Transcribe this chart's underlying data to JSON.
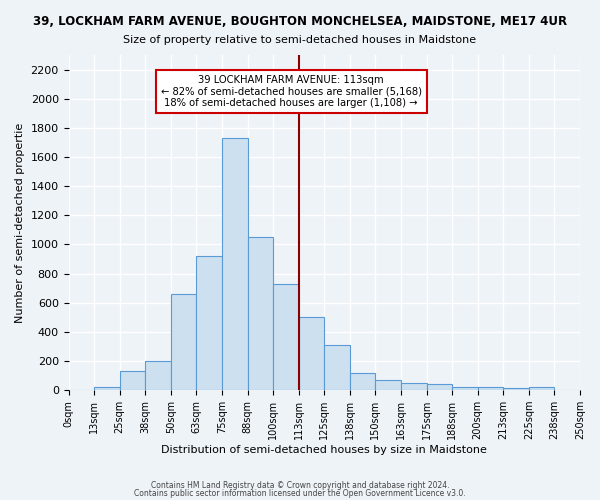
{
  "title1": "39, LOCKHAM FARM AVENUE, BOUGHTON MONCHELSEA, MAIDSTONE, ME17 4UR",
  "title2": "Size of property relative to semi-detached houses in Maidstone",
  "xlabel": "Distribution of semi-detached houses by size in Maidstone",
  "ylabel": "Number of semi-detached propertie",
  "bin_labels": [
    "0sqm",
    "13sqm",
    "25sqm",
    "38sqm",
    "50sqm",
    "63sqm",
    "75sqm",
    "88sqm",
    "100sqm",
    "113sqm",
    "125sqm",
    "138sqm",
    "150sqm",
    "163sqm",
    "175sqm",
    "188sqm",
    "200sqm",
    "213sqm",
    "225sqm",
    "238sqm",
    "250sqm"
  ],
  "bar_heights": [
    0,
    25,
    130,
    200,
    660,
    920,
    1730,
    1050,
    730,
    500,
    310,
    120,
    70,
    50,
    40,
    25,
    20,
    15,
    20,
    0
  ],
  "bar_color": "#cce0f0",
  "bar_edge_color": "#5b9bd5",
  "vline_x": 9,
  "vline_color": "#8b0000",
  "annotation_title": "39 LOCKHAM FARM AVENUE: 113sqm",
  "annotation_line1": "← 82% of semi-detached houses are smaller (5,168)",
  "annotation_line2": "18% of semi-detached houses are larger (1,108) →",
  "annotation_box_color": "#ffffff",
  "annotation_box_edge": "#cc0000",
  "ylim": [
    0,
    2300
  ],
  "yticks": [
    0,
    200,
    400,
    600,
    800,
    1000,
    1200,
    1400,
    1600,
    1800,
    2000,
    2200
  ],
  "bg_color": "#eef3f8",
  "grid_color": "#ffffff",
  "footer1": "Contains HM Land Registry data © Crown copyright and database right 2024.",
  "footer2": "Contains public sector information licensed under the Open Government Licence v3.0."
}
